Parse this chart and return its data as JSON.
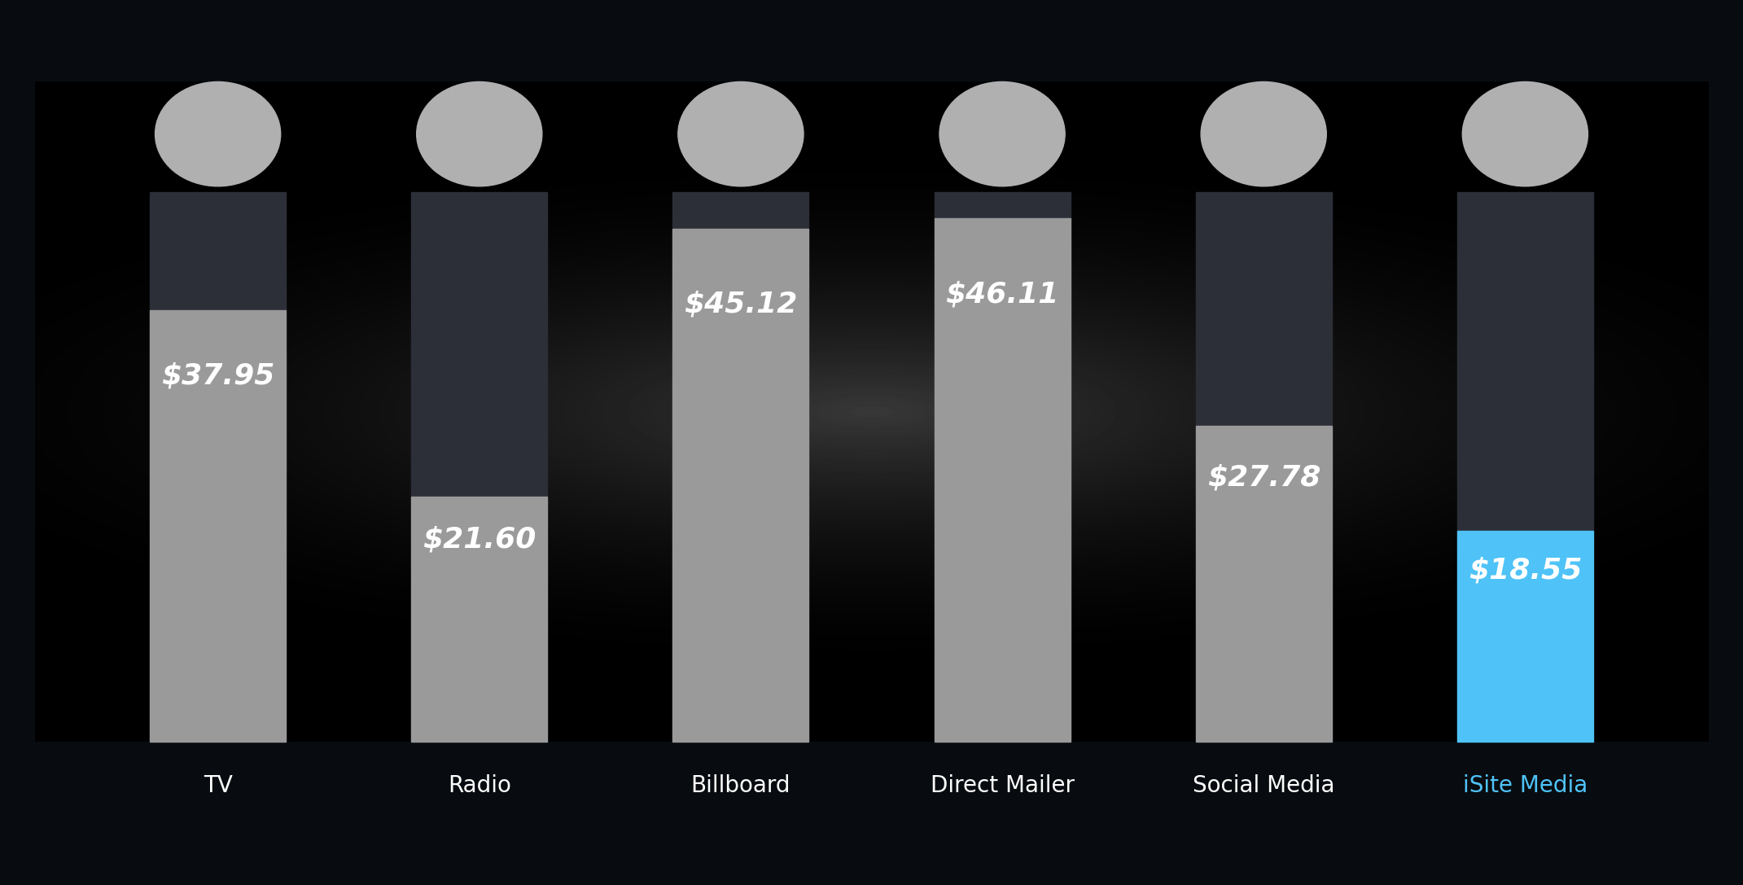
{
  "categories": [
    "TV",
    "Radio",
    "Billboard",
    "Direct Mailer",
    "Social Media",
    "iSite Media"
  ],
  "values": [
    37.95,
    21.6,
    45.12,
    46.11,
    27.78,
    18.55
  ],
  "bar_colors": [
    "#9a9a9a",
    "#9a9a9a",
    "#9a9a9a",
    "#9a9a9a",
    "#9a9a9a",
    "#4fc3f7"
  ],
  "dark_bar_color": "#2c2f38",
  "xlabel_colors": [
    "#ffffff",
    "#ffffff",
    "#ffffff",
    "#ffffff",
    "#ffffff",
    "#4fc3f7"
  ],
  "value_labels": [
    "$37.95",
    "$21.60",
    "$45.12",
    "$46.11",
    "$27.78",
    "$18.55"
  ],
  "background_dark": "#080c10",
  "bar_width": 0.52,
  "total_bar_height": 100,
  "label_fontsize": 26,
  "xlabel_fontsize": 20,
  "circle_color": "#b0b0b0",
  "icon_chars": [
    "📺",
    "📡",
    "📱",
    "✉",
    "📱",
    "●"
  ]
}
